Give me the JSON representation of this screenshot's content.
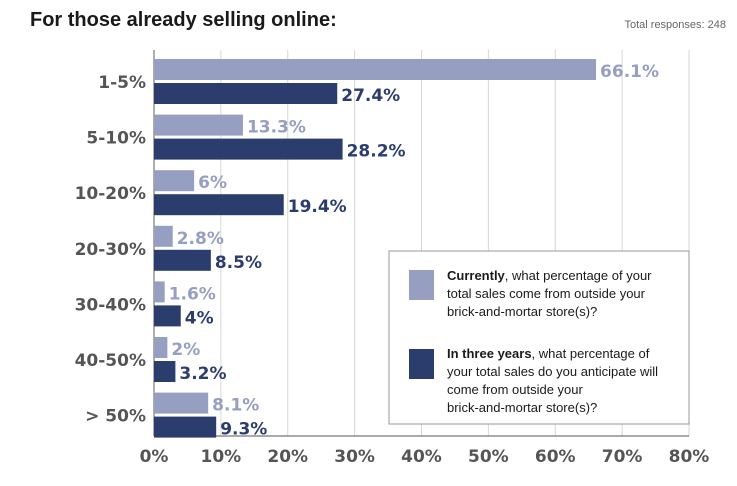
{
  "chart_data": {
    "type": "bar",
    "orientation": "horizontal",
    "title": "For those already selling online:",
    "note": "Total responses: 248",
    "categories": [
      "1-5%",
      "5-10%",
      "10-20%",
      "20-30%",
      "30-40%",
      "40-50%",
      "> 50%"
    ],
    "series": [
      {
        "color": "#969fc1",
        "values": [
          66.1,
          13.3,
          6,
          2.8,
          1.6,
          2,
          8.1
        ],
        "labels": [
          "66.1%",
          "13.3%",
          "6%",
          "2.8%",
          "1.6%",
          "2%",
          "8.1%"
        ]
      },
      {
        "color": "#2b3d6c",
        "values": [
          27.4,
          28.2,
          19.4,
          8.5,
          4,
          3.2,
          9.3
        ],
        "labels": [
          "27.4%",
          "28.2%",
          "19.4%",
          "8.5%",
          "4%",
          "3.2%",
          "9.3%"
        ]
      }
    ],
    "xlim": [
      0,
      80
    ],
    "xticks": [
      "0%",
      "10%",
      "20%",
      "30%",
      "40%",
      "50%",
      "60%",
      "70%",
      "80%"
    ],
    "grid": true,
    "legend_position": "bottom-right",
    "legend": [
      {
        "bold": "Currently",
        "lines": [
          ", what percentage of your",
          "total sales come from outside your",
          "brick-and-mortar store(s)?"
        ]
      },
      {
        "bold": "In three years",
        "lines": [
          ", what percentage of",
          "your total sales do you anticipate will",
          "come from outside your",
          "brick-and-mortar store(s)?"
        ]
      }
    ]
  }
}
